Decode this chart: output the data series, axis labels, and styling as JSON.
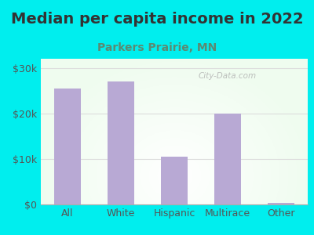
{
  "title": "Median per capita income in 2022",
  "subtitle": "Parkers Prairie, MN",
  "categories": [
    "All",
    "White",
    "Hispanic",
    "Multirace",
    "Other"
  ],
  "values": [
    25500,
    27000,
    10500,
    20000,
    400
  ],
  "bar_color": "#b8a9d4",
  "title_fontsize": 14,
  "subtitle_fontsize": 10,
  "subtitle_color": "#5b8a72",
  "tick_label_fontsize": 9,
  "ytick_labels": [
    "$0",
    "$10k",
    "$20k",
    "$30k"
  ],
  "ytick_values": [
    0,
    10000,
    20000,
    30000
  ],
  "ylim": [
    0,
    32000
  ],
  "background_outer": "#00EEEE",
  "background_plot": "#f2f8f2",
  "watermark": "City-Data.com",
  "grid_color": "#dddddd",
  "title_color": "#333333"
}
